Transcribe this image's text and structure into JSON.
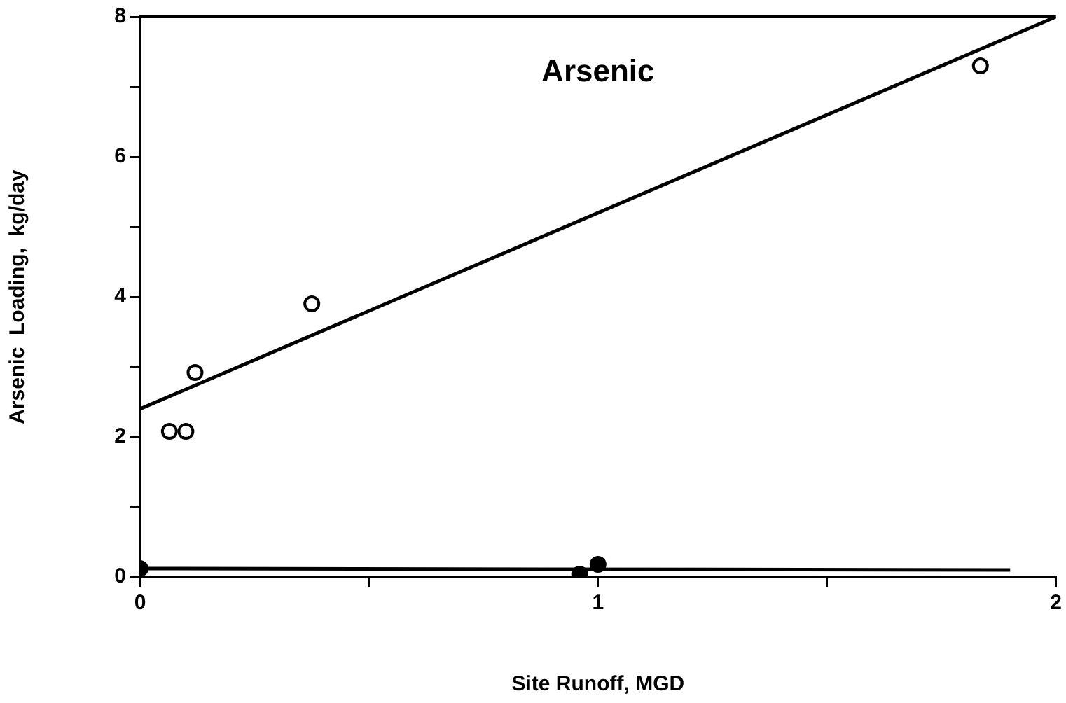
{
  "chart_data": {
    "type": "scatter",
    "title": "Arsenic",
    "xlabel": "Site Runoff, MGD",
    "ylabel": "Arsenic  Loading,  kg/day",
    "xlim": [
      0,
      2
    ],
    "xticks": [
      0,
      {
        "value": 0.5,
        "label": null
      },
      1,
      {
        "value": 1.5,
        "label": null
      },
      2
    ],
    "ylim": [
      0,
      8
    ],
    "yticks": [
      0,
      {
        "value": 1,
        "label": null
      },
      2,
      {
        "value": 3,
        "label": null
      },
      4,
      {
        "value": 5,
        "label": null
      },
      6,
      {
        "value": 7,
        "label": null
      },
      8
    ],
    "grid": false,
    "legend": false,
    "series": [
      {
        "color": "#000000",
        "marker": "circle",
        "x": [
          0.064,
          0.1,
          0.12,
          0.375,
          1.835
        ],
        "values": [
          2.08,
          2.08,
          2.92,
          3.9,
          7.3
        ]
      },
      {
        "color": "#000000",
        "marker": "circle",
        "x": [
          0,
          0.96,
          1.0
        ],
        "values": [
          0.12,
          0.04,
          0.18
        ]
      },
      {
        "type": "line",
        "marker": "none",
        "color": "#000000",
        "x": [
          0,
          2
        ],
        "values": [
          2.4,
          8
        ]
      },
      {
        "type": "line",
        "marker": "none",
        "color": "#000000",
        "x": [
          0,
          1.9
        ],
        "values": [
          0.12,
          0.1
        ]
      }
    ]
  }
}
